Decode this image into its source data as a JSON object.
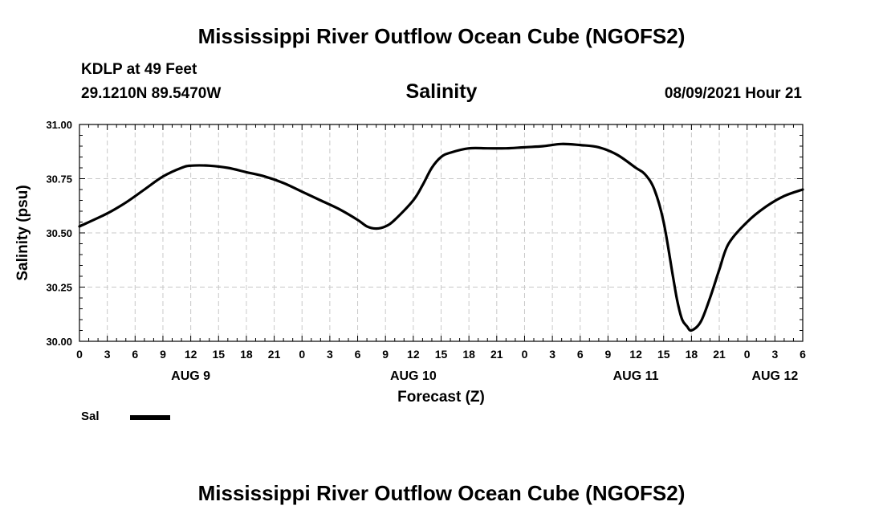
{
  "header": {
    "title": "Mississippi River Outflow Ocean Cube (NGOFS2)",
    "station": "KDLP at 49 Feet",
    "coords": "29.1210N  89.5470W",
    "variable": "Salinity",
    "datetime": "08/09/2021 Hour 21"
  },
  "footer": {
    "title": "Mississippi River Outflow Ocean Cube (NGOFS2)"
  },
  "legend": {
    "label": "Sal"
  },
  "chart_data": {
    "type": "line",
    "title": "Salinity",
    "xlabel": "Forecast (Z)",
    "ylabel": "Salinity (psu)",
    "xlim": [
      0,
      78
    ],
    "ylim": [
      30.0,
      31.0
    ],
    "grid": true,
    "y_ticks": [
      "31.00",
      "30.75",
      "30.50",
      "30.25",
      "30.00"
    ],
    "x_tick_labels": [
      "0",
      "3",
      "6",
      "9",
      "12",
      "15",
      "18",
      "21",
      "0",
      "3",
      "6",
      "9",
      "12",
      "15",
      "18",
      "21",
      "0",
      "3",
      "6",
      "9",
      "12",
      "15",
      "18",
      "21",
      "0",
      "3",
      "6"
    ],
    "date_labels": [
      {
        "label": "AUG 9",
        "hour": 12
      },
      {
        "label": "AUG 10",
        "hour": 36
      },
      {
        "label": "AUG 11",
        "hour": 60
      },
      {
        "label": "AUG 12",
        "hour": 75
      }
    ],
    "series": [
      {
        "name": "Sal",
        "x": [
          0,
          3,
          5,
          7,
          9,
          11,
          12,
          14,
          16,
          18,
          20,
          22,
          24,
          26,
          28,
          30,
          31,
          32,
          33,
          34,
          36,
          37,
          38,
          39,
          40,
          42,
          44,
          46,
          48,
          50,
          52,
          54,
          56,
          58,
          60,
          61,
          62,
          63,
          64,
          64.5,
          65,
          65.5,
          66,
          67,
          68,
          69,
          70,
          72,
          74,
          76,
          78
        ],
        "values": [
          30.53,
          30.59,
          30.64,
          30.7,
          30.76,
          30.8,
          30.81,
          30.81,
          30.8,
          30.78,
          30.76,
          30.73,
          30.69,
          30.65,
          30.61,
          30.56,
          30.53,
          30.52,
          30.53,
          30.56,
          30.65,
          30.72,
          30.8,
          30.85,
          30.87,
          30.89,
          30.89,
          30.89,
          30.895,
          30.9,
          30.91,
          30.905,
          30.895,
          30.86,
          30.8,
          30.77,
          30.7,
          30.55,
          30.3,
          30.18,
          30.1,
          30.07,
          30.05,
          30.09,
          30.2,
          30.33,
          30.45,
          30.55,
          30.62,
          30.67,
          30.7
        ]
      }
    ]
  }
}
